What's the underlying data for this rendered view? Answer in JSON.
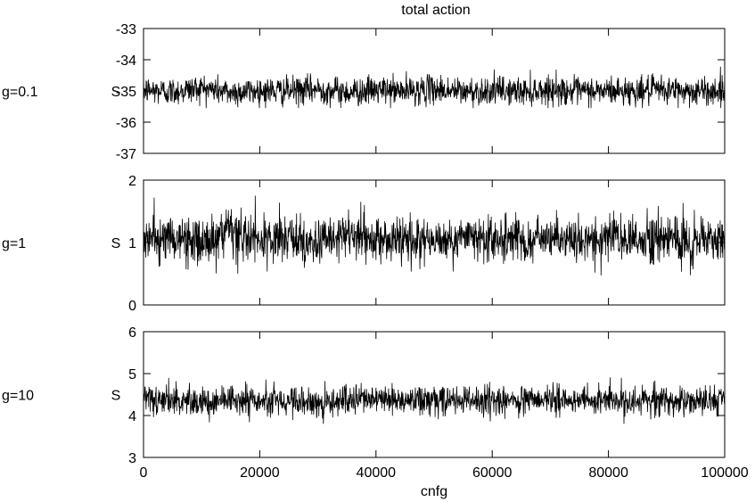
{
  "figure": {
    "title": "total action"
  },
  "chart_data": [
    {
      "type": "line",
      "panel_label": "g=0.1",
      "title": "total action",
      "xlabel": "",
      "ylabel": "S",
      "xlim": [
        0,
        100000
      ],
      "ylim": [
        -37,
        -33
      ],
      "x_ticks": [
        0,
        20000,
        40000,
        60000,
        80000,
        100000
      ],
      "y_ticks": [
        -37,
        -36,
        -35,
        -34,
        -33
      ],
      "x_tick_labels_visible": false,
      "grid": false,
      "series": [
        {
          "color": "#000000",
          "x_range": [
            0,
            100000
          ],
          "mean": -35.0,
          "fluctuation_band": [
            -35.4,
            -34.5
          ],
          "extremes": [
            -35.55,
            -34.2
          ],
          "values_sampled": [
            -34.95,
            -35.05,
            -34.8,
            -35.1,
            -34.98,
            -35.02,
            -34.9,
            -35.08,
            -34.96,
            -35.0,
            -34.88,
            -35.06,
            -34.97,
            -35.03,
            -34.92,
            -35.04,
            -34.99,
            -35.01,
            -34.93,
            -35.05,
            -34.98
          ]
        }
      ]
    },
    {
      "type": "line",
      "panel_label": "g=1",
      "xlabel": "",
      "ylabel": "S",
      "xlim": [
        0,
        100000
      ],
      "ylim": [
        0,
        2
      ],
      "x_ticks": [
        0,
        20000,
        40000,
        60000,
        80000,
        100000
      ],
      "y_ticks": [
        0,
        1,
        2
      ],
      "x_tick_labels_visible": false,
      "grid": false,
      "series": [
        {
          "color": "#000000",
          "x_range": [
            0,
            100000
          ],
          "mean": 1.05,
          "fluctuation_band": [
            0.7,
            1.45
          ],
          "extremes": [
            0.45,
            1.75
          ],
          "values_sampled": [
            1.05,
            1.1,
            0.95,
            1.2,
            1.0,
            1.08,
            0.9,
            1.15,
            1.02,
            1.06,
            0.98,
            1.12,
            1.04,
            1.0,
            1.1,
            0.96,
            1.08,
            1.03,
            1.12,
            1.0,
            1.06
          ]
        }
      ]
    },
    {
      "type": "line",
      "panel_label": "g=10",
      "xlabel": "cnfg",
      "ylabel": "S",
      "xlim": [
        0,
        100000
      ],
      "ylim": [
        3,
        6
      ],
      "x_ticks": [
        0,
        20000,
        40000,
        60000,
        80000,
        100000
      ],
      "x_tick_labels": [
        "0",
        "20000",
        "40000",
        "60000",
        "80000",
        "100000"
      ],
      "y_ticks": [
        3,
        4,
        5,
        6
      ],
      "x_tick_labels_visible": true,
      "grid": false,
      "series": [
        {
          "color": "#000000",
          "x_range": [
            0,
            100000
          ],
          "mean": 4.35,
          "fluctuation_band": [
            4.05,
            4.75
          ],
          "extremes": [
            3.8,
            5.1
          ],
          "values_sampled": [
            4.35,
            4.4,
            4.3,
            4.45,
            4.32,
            4.38,
            4.28,
            4.42,
            4.36,
            4.34,
            4.4,
            4.3,
            4.38,
            4.33,
            4.41,
            4.29,
            4.37,
            4.35,
            4.39,
            4.31,
            4.36
          ]
        }
      ]
    }
  ]
}
